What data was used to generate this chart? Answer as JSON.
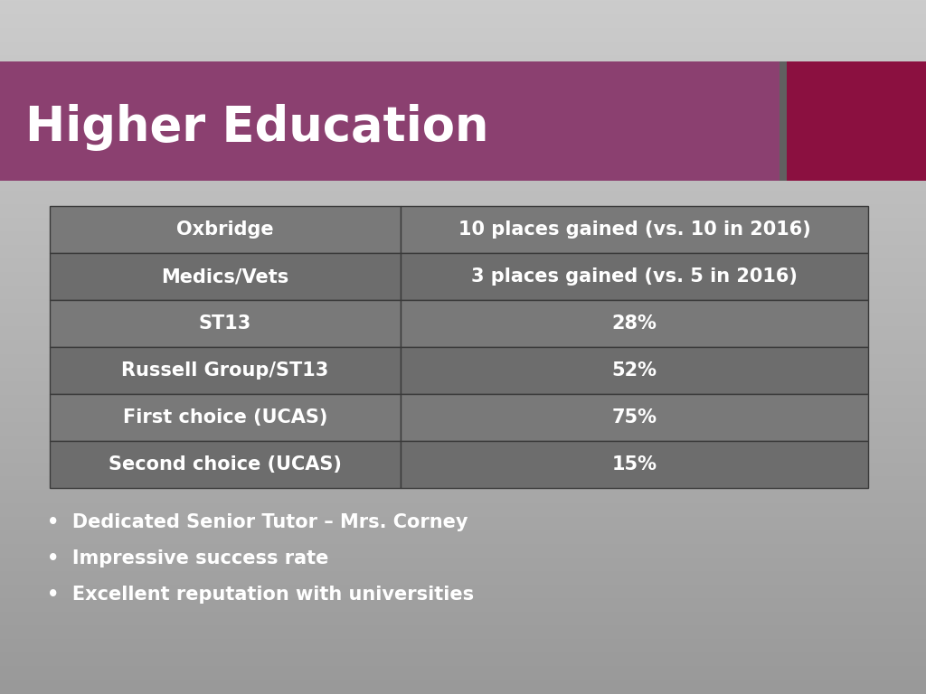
{
  "title": "Higher Education",
  "title_color": "#ffffff",
  "header_band_color": "#8B4070",
  "header_band_dark_color": "#8B1040",
  "table_rows": [
    [
      "Oxbridge",
      "10 places gained (vs. 10 in 2016)"
    ],
    [
      "Medics/Vets",
      "3 places gained (vs. 5 in 2016)"
    ],
    [
      "ST13",
      "28%"
    ],
    [
      "Russell Group/ST13",
      "52%"
    ],
    [
      "First choice (UCAS)",
      "75%"
    ],
    [
      "Second choice (UCAS)",
      "15%"
    ]
  ],
  "row_colors": [
    "#797979",
    "#6d6d6d",
    "#797979",
    "#6d6d6d",
    "#797979",
    "#6d6d6d"
  ],
  "table_text_color": "#ffffff",
  "table_border_color": "#3a3a3a",
  "bullet_points": [
    "Dedicated Senior Tutor – Mrs. Corney",
    "Impressive success rate",
    "Excellent reputation with universities"
  ],
  "bullet_color": "#ffffff",
  "bullet_fontsize": 15
}
